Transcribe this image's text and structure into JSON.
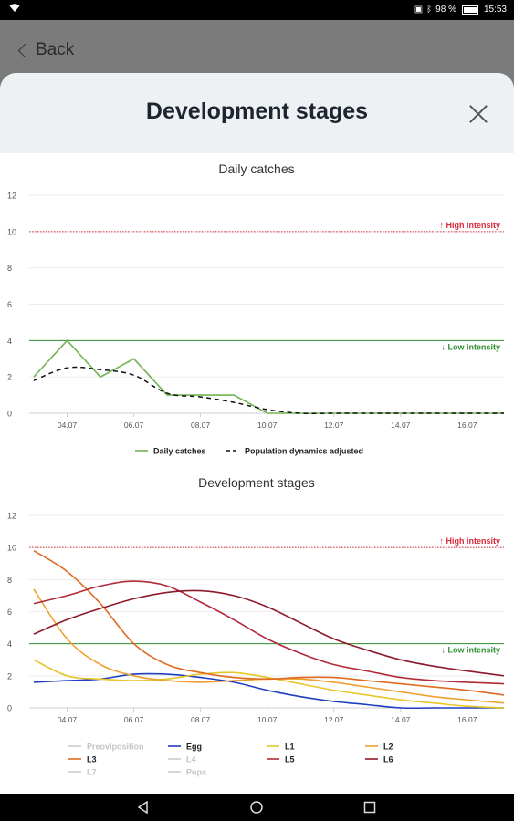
{
  "status": {
    "battery": "98 %",
    "time": "15:53"
  },
  "header": {
    "back_label": "Back"
  },
  "sheet": {
    "title": "Development stages"
  },
  "colors": {
    "green": "#74b354",
    "red": "#d92b3a",
    "grid": "#eaeaea"
  },
  "chart_data": [
    {
      "type": "line",
      "title": "Daily catches",
      "ylim": [
        0,
        12
      ],
      "yticks": [
        0,
        2,
        4,
        6,
        8,
        10,
        12
      ],
      "xlim": [
        3,
        17.1
      ],
      "xticks": [
        {
          "v": 4,
          "label": "04.07"
        },
        {
          "v": 6,
          "label": "06.07"
        },
        {
          "v": 8,
          "label": "08.07"
        },
        {
          "v": 10,
          "label": "10.07"
        },
        {
          "v": 12,
          "label": "12.07"
        },
        {
          "v": 14,
          "label": "14.07"
        },
        {
          "v": 16,
          "label": "16.07"
        }
      ],
      "thresholds": [
        {
          "value": 10,
          "label": "↑ High intensity",
          "color": "#d92b3a",
          "dashed": true
        },
        {
          "value": 4,
          "label": "↓ Low intensity",
          "color": "#2f8f2f",
          "dashed": false
        }
      ],
      "series": [
        {
          "name": "Daily catches",
          "color": "#74b354",
          "style": "solid",
          "x": [
            3,
            4,
            5,
            6,
            7,
            8,
            9,
            10,
            11,
            12,
            13,
            14,
            15,
            16,
            17.1
          ],
          "y": [
            2,
            4,
            2,
            3,
            1,
            1,
            1,
            0,
            0,
            0,
            0,
            0,
            0,
            0,
            0
          ]
        },
        {
          "name": "Population dynamics adjusted",
          "color": "#111111",
          "style": "dashed",
          "x": [
            3,
            4,
            5,
            6,
            7,
            8,
            9,
            10,
            11,
            12,
            13,
            14,
            15,
            16,
            17.1
          ],
          "y": [
            1.8,
            2.5,
            2.4,
            2.1,
            1.1,
            0.9,
            0.6,
            0.2,
            0,
            0,
            0,
            0,
            0,
            0,
            0
          ]
        }
      ],
      "legend": [
        {
          "label": "Daily catches",
          "color": "#74b354",
          "style": "solid"
        },
        {
          "label": "Population dynamics adjusted",
          "color": "#111111",
          "style": "dashed"
        }
      ]
    },
    {
      "type": "line",
      "title": "Development stages",
      "ylim": [
        0,
        12
      ],
      "yticks": [
        0,
        2,
        4,
        6,
        8,
        10,
        12
      ],
      "xlim": [
        3,
        17.1
      ],
      "xticks": [
        {
          "v": 4,
          "label": "04.07"
        },
        {
          "v": 6,
          "label": "06.07"
        },
        {
          "v": 8,
          "label": "08.07"
        },
        {
          "v": 10,
          "label": "10.07"
        },
        {
          "v": 12,
          "label": "12.07"
        },
        {
          "v": 14,
          "label": "14.07"
        },
        {
          "v": 16,
          "label": "16.07"
        }
      ],
      "thresholds": [
        {
          "value": 10,
          "label": "↑ High intensity",
          "color": "#d92b3a",
          "dashed": true
        },
        {
          "value": 4,
          "label": "↓ Low intensity",
          "color": "#2f8f2f",
          "dashed": false
        }
      ],
      "series": [
        {
          "name": "Egg",
          "color": "#1f3fbf",
          "style": "solid",
          "x": [
            3,
            4,
            5,
            6,
            7,
            8,
            9,
            10,
            11,
            12,
            13,
            14,
            15,
            16,
            17.1
          ],
          "y": [
            1.6,
            1.7,
            1.8,
            2.1,
            2.1,
            1.9,
            1.6,
            1.1,
            0.7,
            0.4,
            0.2,
            0,
            0,
            0,
            0
          ]
        },
        {
          "name": "L1",
          "color": "#e8c52a",
          "style": "solid",
          "x": [
            3,
            4,
            5,
            6,
            7,
            8,
            9,
            10,
            11,
            12,
            13,
            14,
            15,
            16,
            17.1
          ],
          "y": [
            3.0,
            2.0,
            1.8,
            1.7,
            1.8,
            2.1,
            2.2,
            1.9,
            1.5,
            1.1,
            0.8,
            0.5,
            0.3,
            0.1,
            0
          ]
        },
        {
          "name": "L2",
          "color": "#f0a030",
          "style": "solid",
          "x": [
            3,
            4,
            5,
            6,
            7,
            8,
            9,
            10,
            11,
            12,
            13,
            14,
            15,
            16,
            17.1
          ],
          "y": [
            7.4,
            4.3,
            2.7,
            2.0,
            1.7,
            1.6,
            1.7,
            1.8,
            1.8,
            1.6,
            1.3,
            1.0,
            0.7,
            0.5,
            0.3
          ]
        },
        {
          "name": "L3",
          "color": "#e06a20",
          "style": "solid",
          "x": [
            3,
            4,
            5,
            6,
            7,
            8,
            9,
            10,
            11,
            12,
            13,
            14,
            15,
            16,
            17.1
          ],
          "y": [
            9.8,
            8.5,
            6.5,
            4.0,
            2.7,
            2.2,
            1.9,
            1.8,
            1.9,
            1.9,
            1.7,
            1.5,
            1.3,
            1.1,
            0.8
          ]
        },
        {
          "name": "L5",
          "color": "#b22a3a",
          "style": "solid",
          "x": [
            3,
            4,
            5,
            6,
            7,
            8,
            9,
            10,
            11,
            12,
            13,
            14,
            15,
            16,
            17.1
          ],
          "y": [
            6.5,
            7.0,
            7.6,
            7.9,
            7.6,
            6.6,
            5.5,
            4.3,
            3.4,
            2.7,
            2.3,
            1.9,
            1.7,
            1.6,
            1.5
          ]
        },
        {
          "name": "L6",
          "color": "#8e1a2c",
          "style": "solid",
          "x": [
            3,
            4,
            5,
            6,
            7,
            8,
            9,
            10,
            11,
            12,
            13,
            14,
            15,
            16,
            17.1
          ],
          "y": [
            4.6,
            5.5,
            6.2,
            6.8,
            7.2,
            7.3,
            7.0,
            6.3,
            5.3,
            4.3,
            3.6,
            3.0,
            2.6,
            2.3,
            2.0
          ]
        }
      ],
      "legend": [
        {
          "label": "Preoviposition",
          "color": "#cccccc",
          "style": "solid",
          "muted": true
        },
        {
          "label": "Egg",
          "color": "#1f3fbf",
          "style": "solid"
        },
        {
          "label": "L1",
          "color": "#e8c52a",
          "style": "solid"
        },
        {
          "label": "L2",
          "color": "#f0a030",
          "style": "solid"
        },
        {
          "label": "L3",
          "color": "#e06a20",
          "style": "solid"
        },
        {
          "label": "L4",
          "color": "#cccccc",
          "style": "solid",
          "muted": true
        },
        {
          "label": "L5",
          "color": "#b22a3a",
          "style": "solid"
        },
        {
          "label": "L6",
          "color": "#8e1a2c",
          "style": "solid"
        },
        {
          "label": "L7",
          "color": "#cccccc",
          "style": "solid",
          "muted": true
        },
        {
          "label": "Pupa",
          "color": "#cccccc",
          "style": "solid",
          "muted": true
        }
      ]
    }
  ]
}
